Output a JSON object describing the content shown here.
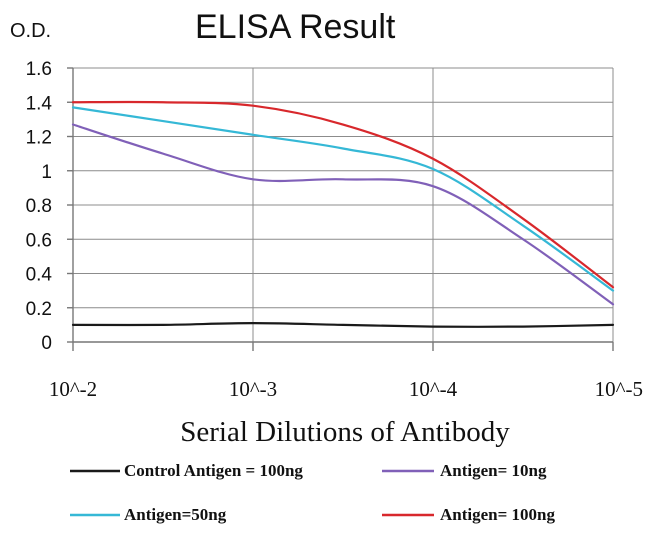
{
  "chart_data": {
    "type": "line",
    "title": "ELISA Result",
    "ylabel": "O.D.",
    "xlabel": "Serial Dilutions of Antibody",
    "categories": [
      "10^-2",
      "10^-3",
      "10^-4",
      "10^-5"
    ],
    "x": [
      0,
      0.5,
      1,
      1.5,
      2,
      2.5,
      3
    ],
    "ylim": [
      0,
      1.6
    ],
    "yticks": [
      "0",
      "0.2",
      "0.4",
      "0.6",
      "0.8",
      "1",
      "1.2",
      "1.4",
      "1.6"
    ],
    "grid": true,
    "legend_position": "bottom",
    "series": [
      {
        "name": "Control Antigen = 100ng",
        "color": "#1a1a1a",
        "values": [
          0.1,
          0.1,
          0.11,
          0.1,
          0.09,
          0.09,
          0.1
        ]
      },
      {
        "name": "Antigen= 10ng",
        "color": "#8060b8",
        "values": [
          1.27,
          1.1,
          0.95,
          0.95,
          0.91,
          0.6,
          0.22
        ]
      },
      {
        "name": "Antigen=50ng",
        "color": "#35b8d6",
        "values": [
          1.37,
          1.29,
          1.21,
          1.13,
          1.01,
          0.68,
          0.3
        ]
      },
      {
        "name": "Antigen= 100ng",
        "color": "#d8282c",
        "values": [
          1.4,
          1.4,
          1.38,
          1.27,
          1.07,
          0.72,
          0.32
        ]
      }
    ]
  }
}
